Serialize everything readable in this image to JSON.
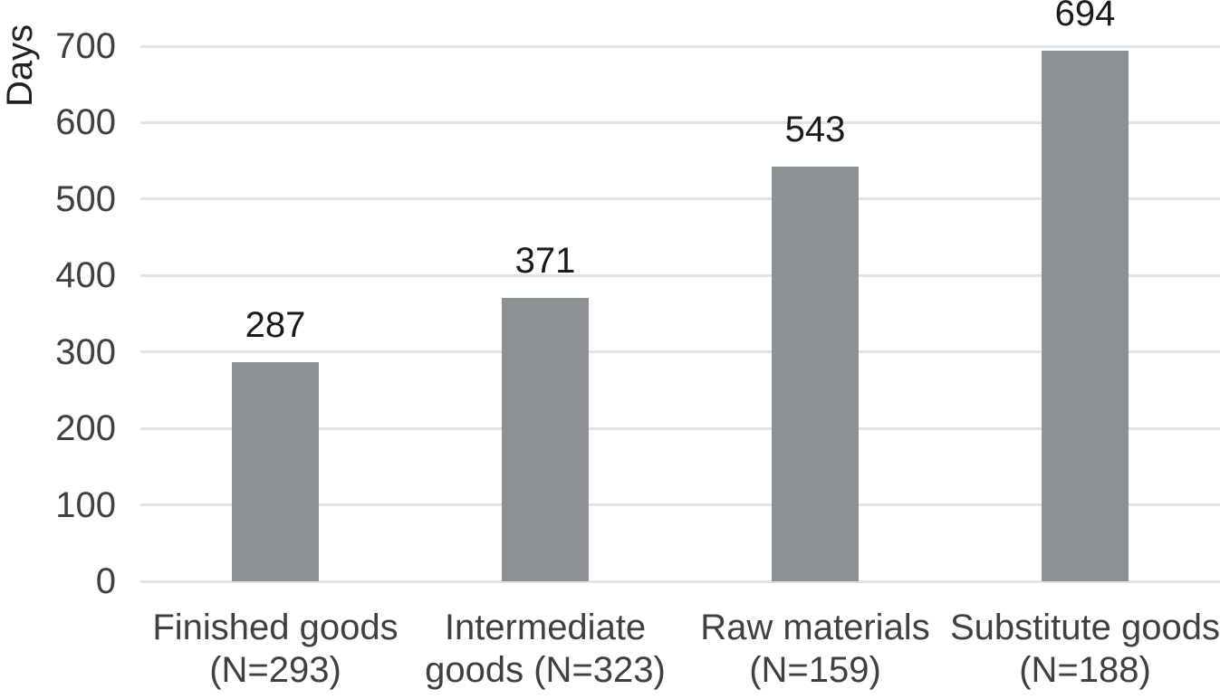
{
  "chart_data": {
    "type": "bar",
    "title": "",
    "ylabel": "Days",
    "xlabel": "",
    "categories": [
      "Finished goods\n(N=293)",
      "Intermediate\ngoods (N=323)",
      "Raw materials\n(N=159)",
      "Substitute goods\n(N=188)"
    ],
    "values": [
      287,
      371,
      543,
      694
    ],
    "value_labels": [
      "287",
      "371",
      "543",
      "694"
    ],
    "yticks": [
      0,
      100,
      200,
      300,
      400,
      500,
      600,
      700
    ],
    "ylim": [
      0,
      700
    ],
    "grid": "horizontal",
    "legend": "none",
    "colors": {
      "bar": "#8d9094",
      "gridline": "#e3e3e5",
      "tick_text": "#3e4043",
      "category_text": "#3e4043",
      "value_text": "#1a1a1a",
      "ylabel_text": "#222222",
      "background": "#ffffff"
    }
  }
}
